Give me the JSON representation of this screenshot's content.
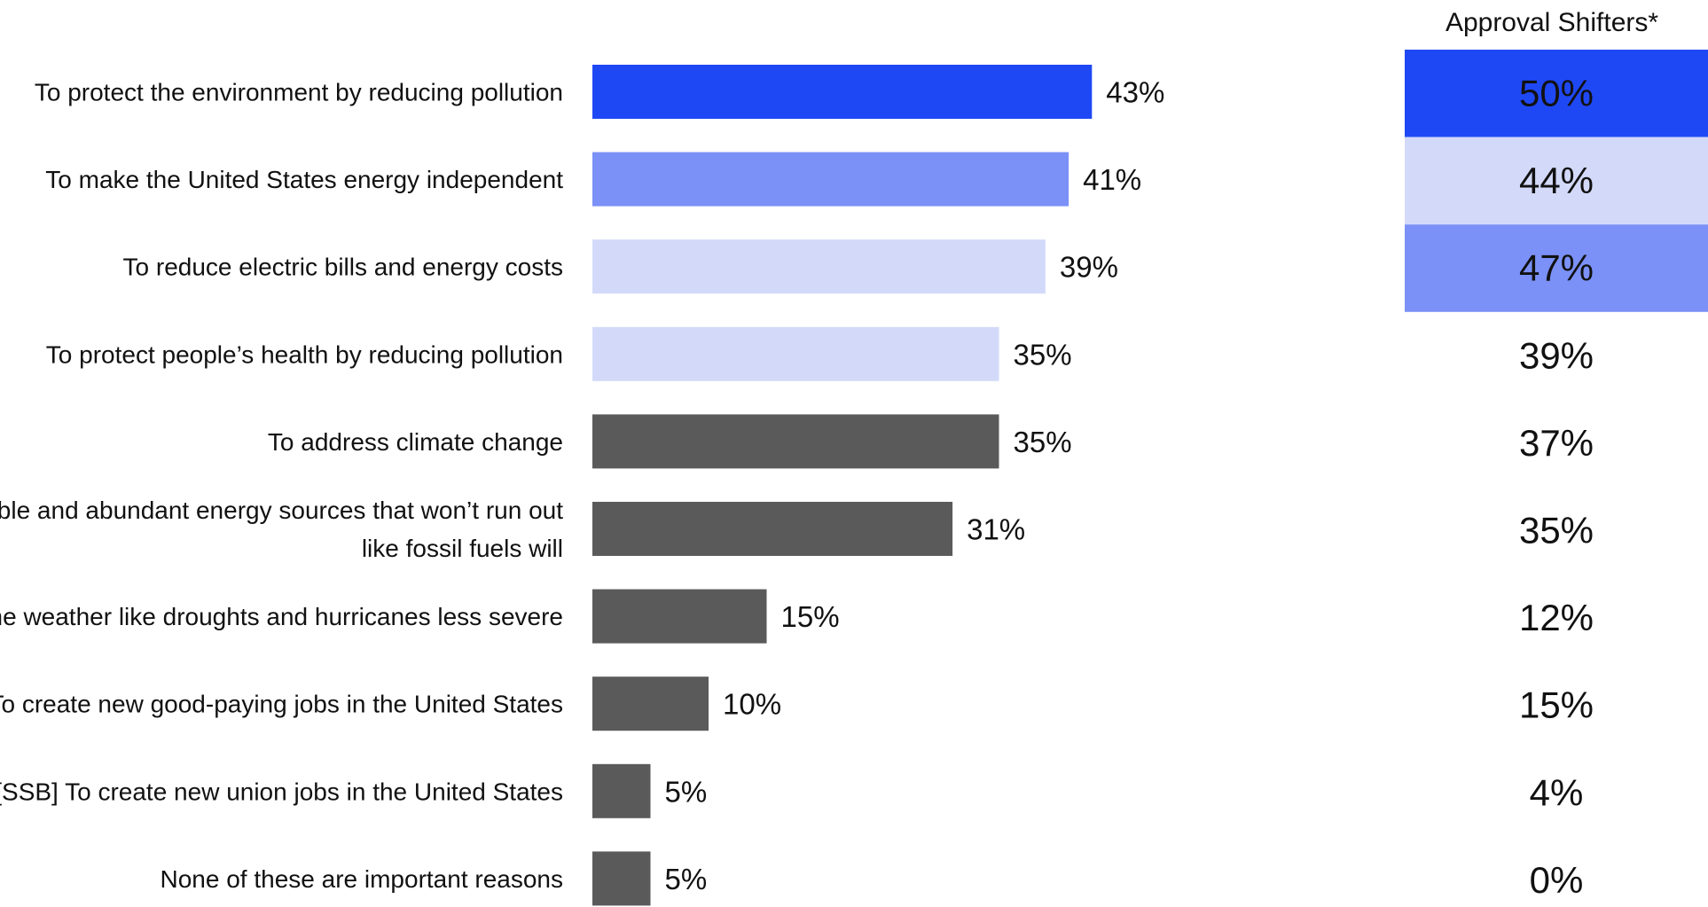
{
  "chart_data": {
    "type": "bar",
    "orientation": "horizontal",
    "categories": [
      "To protect the environment by reducing pollution",
      "To make the United States energy independent",
      "To reduce electric bills and energy costs",
      "To protect people’s health by reducing pollution",
      "To address climate change",
      "To use reliable and abundant energy sources that won’t run out like fossil fuels will",
      "To make extreme weather like droughts and hurricanes less severe",
      "To create new good-paying jobs in the United States",
      "[SSB] To create new union jobs in the United States",
      "None of these are important reasons"
    ],
    "category_lines": [
      [
        "To protect the environment by reducing pollution"
      ],
      [
        "To make the United States energy independent"
      ],
      [
        "To reduce electric bills and energy costs"
      ],
      [
        "To protect people’s health by reducing pollution"
      ],
      [
        "To address climate change"
      ],
      [
        "To use reliable and abundant energy sources that won’t run out",
        "like fossil fuels will"
      ],
      [
        "To make extreme weather like droughts and hurricanes less severe"
      ],
      [
        "To create new good-paying jobs in the United States"
      ],
      [
        "[SSB] To create new union jobs in the United States"
      ],
      [
        "None of these are important reasons"
      ]
    ],
    "values": [
      43,
      41,
      39,
      35,
      35,
      31,
      15,
      10,
      5,
      5
    ],
    "value_labels": [
      "43%",
      "41%",
      "39%",
      "35%",
      "35%",
      "31%",
      "15%",
      "10%",
      "5%",
      "5%"
    ],
    "bar_colors": [
      "#1f48f5",
      "#7b91f7",
      "#d3daf9",
      "#d3daf9",
      "#5a5a5a",
      "#5a5a5a",
      "#5a5a5a",
      "#5a5a5a",
      "#5a5a5a",
      "#5a5a5a"
    ],
    "approval_shifters": {
      "header": "Approval Shifters*",
      "values": [
        50,
        44,
        47,
        39,
        37,
        35,
        12,
        15,
        4,
        0
      ],
      "labels": [
        "50%",
        "44%",
        "47%",
        "39%",
        "37%",
        "35%",
        "12%",
        "15%",
        "4%",
        "0%"
      ],
      "highlight_colors": [
        "#1f48f5",
        "#d3daf9",
        "#7b91f7",
        null,
        null,
        null,
        null,
        null,
        null,
        null
      ],
      "text_colors": [
        "#ffffff",
        "#111111",
        "#111111",
        "#111111",
        "#111111",
        "#111111",
        "#111111",
        "#111111",
        "#111111",
        "#111111"
      ]
    },
    "title": "",
    "xlabel": "",
    "ylabel": "",
    "xlim": [
      0,
      50
    ],
    "grid": false,
    "legend": "none"
  }
}
